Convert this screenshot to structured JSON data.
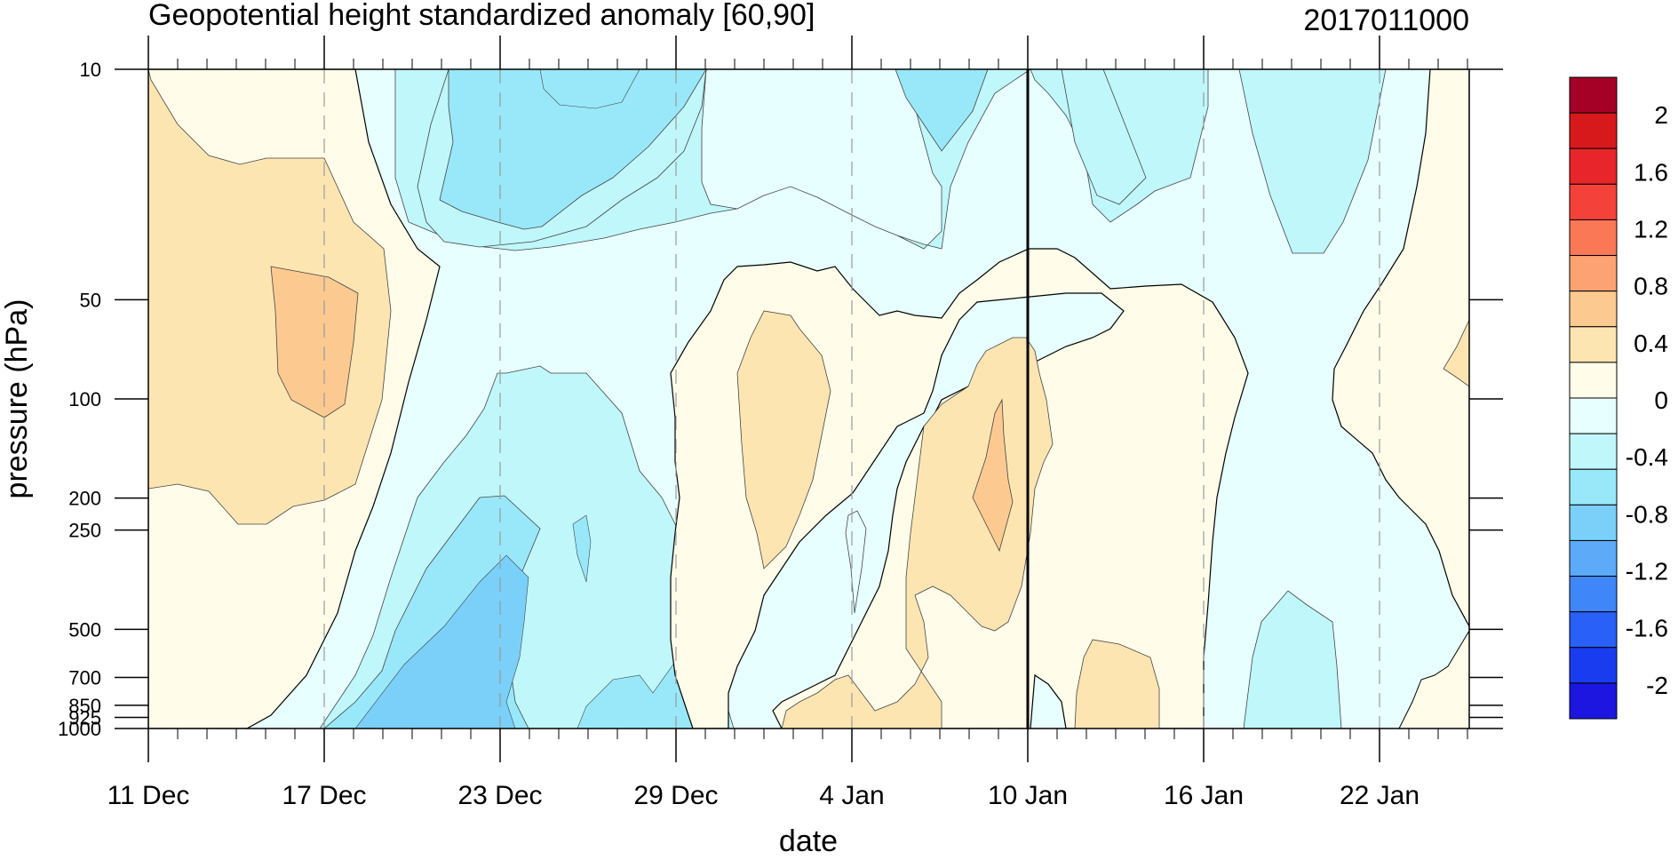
{
  "chart_data": {
    "type": "heatmap",
    "title": "Geopotential height standardized anomaly [60,90]",
    "timestamp": "2017011000",
    "xlabel": "date",
    "ylabel": "pressure (hPa)",
    "x_range": [
      "11 Dec",
      "26 Jan"
    ],
    "y_range": [
      1000,
      10
    ],
    "y_scale": "log",
    "x_ticks": [
      "11 Dec",
      "17 Dec",
      "23 Dec",
      "29 Dec",
      "4 Jan",
      "10 Jan",
      "16 Jan",
      "22 Jan"
    ],
    "y_ticks": [
      "10",
      "50",
      "100",
      "200",
      "250",
      "500",
      "700",
      "850",
      "925",
      "1000"
    ],
    "marked_date": "10 Jan",
    "colorbar": {
      "labels": [
        "2",
        "1.6",
        "1.2",
        "0.8",
        "0.4",
        "0",
        "-0.4",
        "-0.8",
        "-1.2",
        "-1.6",
        "-2"
      ],
      "colors": [
        "#a50026",
        "#d7191c",
        "#e8252a",
        "#f4413a",
        "#fb7857",
        "#fda373",
        "#fcca91",
        "#fde5b2",
        "#fffde9",
        "#e7ffff",
        "#bff7fb",
        "#98e8fa",
        "#7ad0f8",
        "#5caaf8",
        "#3f86f8",
        "#2860f8",
        "#1a3cf0",
        "#1c16e0"
      ]
    },
    "regions": [
      {
        "level": -0.4,
        "color": "#bff7fb"
      },
      {
        "level": -0.6,
        "color": "#98e8fa"
      },
      {
        "level": -0.2,
        "color": "#e7ffff"
      },
      {
        "level": 0.2,
        "color": "#fffde9"
      },
      {
        "level": 0.4,
        "color": "#fde5b2"
      },
      {
        "level": 0.6,
        "color": "#fcca91"
      }
    ]
  }
}
